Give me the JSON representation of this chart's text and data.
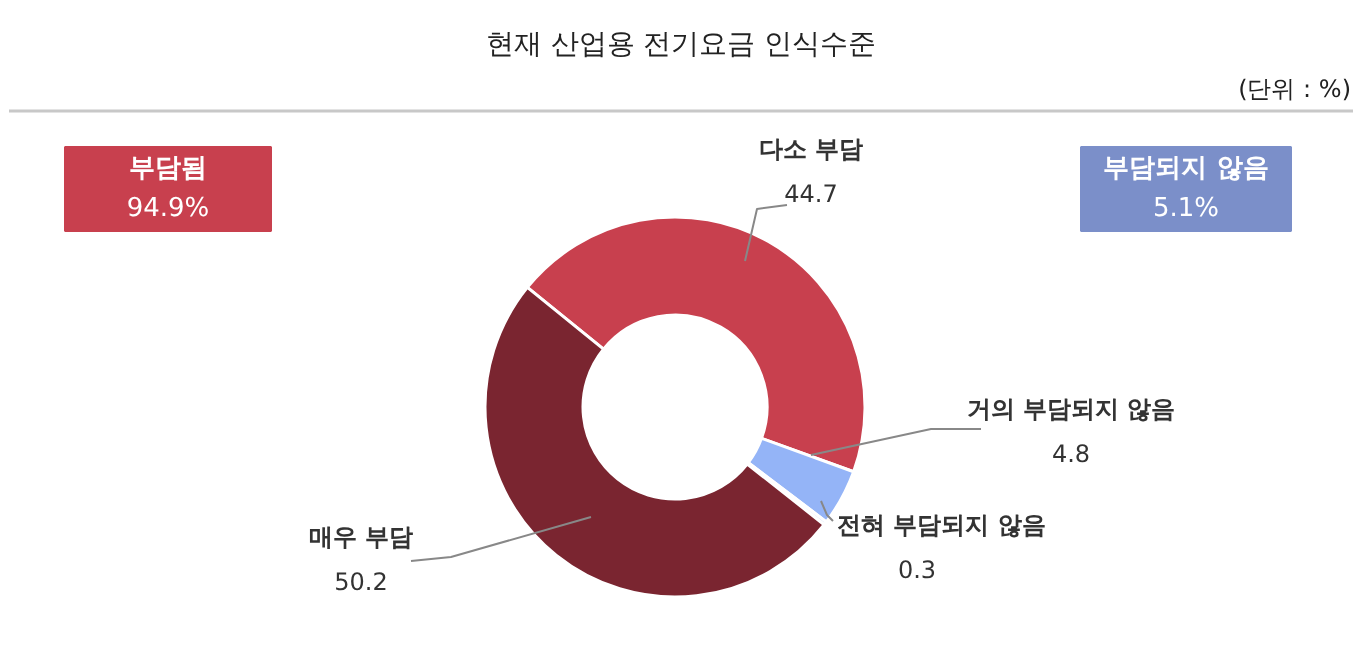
{
  "chart_data": {
    "type": "donut",
    "title": "현재 산업용 전기요금 인식수준",
    "categories": [
      "다소 부담",
      "거의 부담되지 않음",
      "전혀 부담되지 않음",
      "매우 부담"
    ],
    "values": [
      44.7,
      4.8,
      0.3,
      50.2
    ],
    "colors": [
      "#c8404e",
      "#94b4f7",
      "#dce6fb",
      "#7a2530"
    ],
    "data_labels": true,
    "annotations": [
      "(단위 : %)",
      "부담됨 94.9%",
      "부담되지 않음 5.1%"
    ]
  }
}
